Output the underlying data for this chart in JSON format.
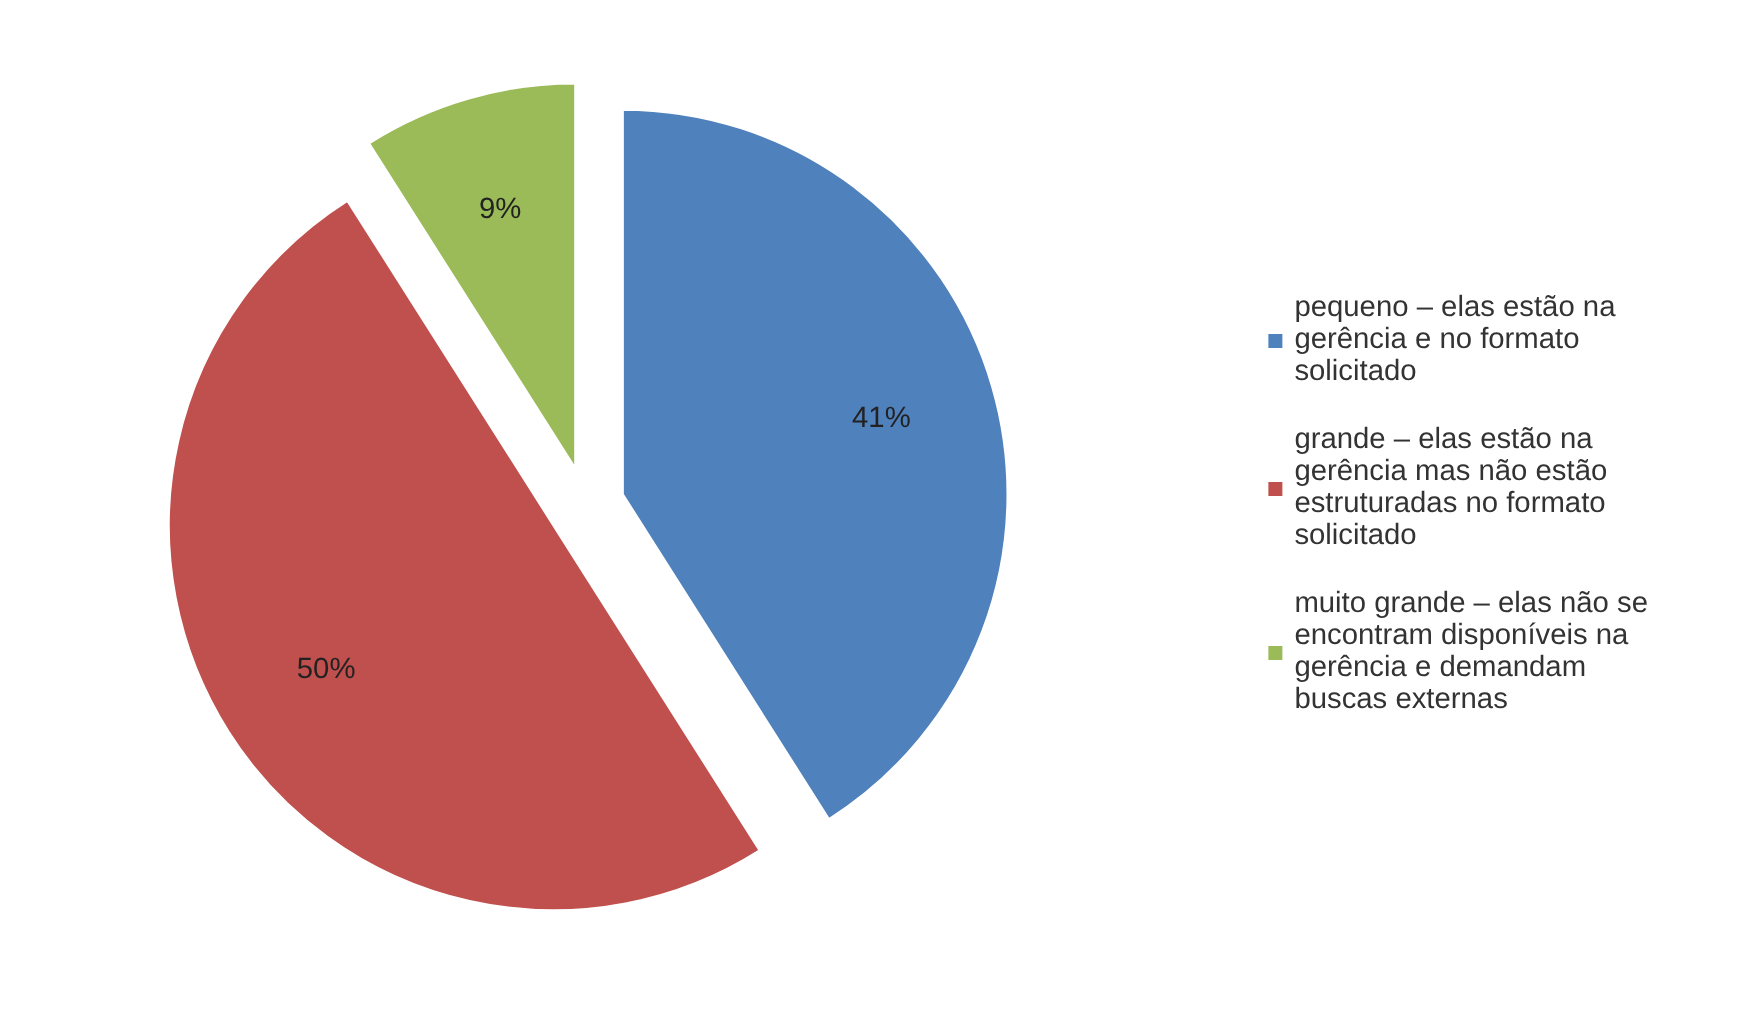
{
  "chart_data": {
    "type": "pie",
    "categories": [
      "pequeno – elas estão na gerência e no formato solicitado",
      "grande – elas estão na gerência mas não estão estruturadas no formato solicitado",
      "muito grande – elas não se encontram disponíveis na gerência e demandam  buscas externas"
    ],
    "values": [
      41,
      50,
      9
    ],
    "colors": [
      "#4f81bd",
      "#c0504d",
      "#9bbb59"
    ],
    "value_labels": [
      "41%",
      "50%",
      "9%"
    ],
    "legend": "right"
  }
}
